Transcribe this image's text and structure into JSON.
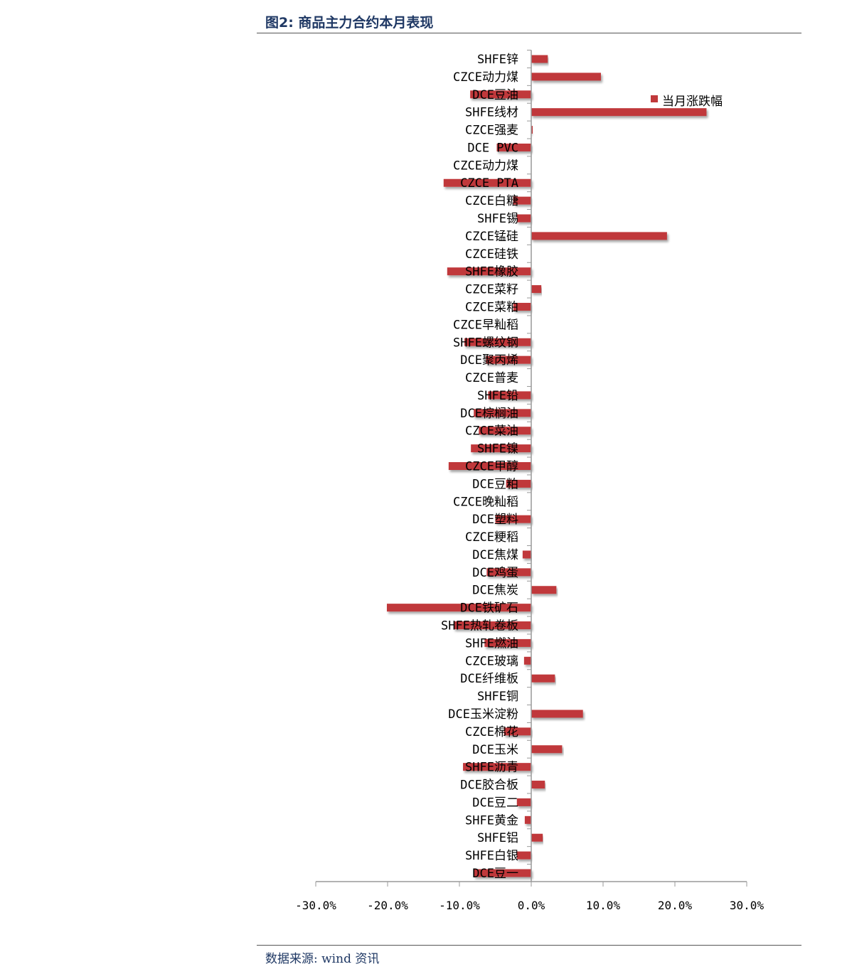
{
  "title": "图2:  商品主力合约本月表现",
  "source": "数据来源:  wind 资讯",
  "chart_data": {
    "type": "bar",
    "orientation": "horizontal",
    "title": "",
    "xlabel": "",
    "ylabel": "",
    "xlim": [
      -30,
      30
    ],
    "x_ticks": [
      -30,
      -20,
      -10,
      0,
      10,
      20,
      30
    ],
    "x_tick_labels": [
      "-30.0%",
      "-20.0%",
      "-10.0%",
      "0.0%",
      "10.0%",
      "20.0%",
      "30.0%"
    ],
    "legend": {
      "labels": [
        "当月涨跌幅"
      ],
      "placement": "top-right"
    },
    "bar_color": "#c0393b",
    "categories": [
      "SHFE锌",
      "CZCE动力煤",
      "DCE豆油",
      "SHFE线材",
      "CZCE强麦",
      "DCE  PVC",
      "CZCE动力煤",
      "CZCE  PTA",
      "CZCE白糖",
      "SHFE锡",
      "CZCE锰硅",
      "CZCE硅铁",
      "SHFE橡胶",
      "CZCE菜籽",
      "CZCE菜粕",
      "CZCE早籼稻",
      "SHFE螺纹钢",
      "DCE聚丙烯",
      "CZCE普麦",
      "SHFE铅",
      "DCE棕榈油",
      "CZCE菜油",
      "SHFE镍",
      "CZCE甲醇",
      "DCE豆粕",
      "CZCE晚籼稻",
      "DCE塑料",
      "CZCE粳稻",
      "DCE焦煤",
      "DCE鸡蛋",
      "DCE焦炭",
      "DCE铁矿石",
      "SHFE热轧卷板",
      "SHFE燃油",
      "CZCE玻璃",
      "DCE纤维板",
      "SHFE铜",
      "DCE玉米淀粉",
      "CZCE棉花",
      "DCE玉米",
      "SHFE沥青",
      "DCE胶合板",
      "DCE豆二",
      "SHFE黄金",
      "SHFE铝",
      "SHFE白银",
      "DCE豆一"
    ],
    "series": [
      {
        "name": "当月涨跌幅",
        "values": [
          2.3,
          9.7,
          -8.5,
          24.4,
          0.2,
          -4.8,
          0,
          -12.2,
          -2.5,
          -2.0,
          18.9,
          0,
          -11.7,
          1.4,
          -2.5,
          0,
          -9.3,
          -6.3,
          0,
          -6.0,
          -8.0,
          -7.3,
          -8.4,
          -11.5,
          -3.5,
          0,
          -5.0,
          0,
          -1.2,
          -6.2,
          3.5,
          -20.1,
          -10.8,
          -6.5,
          -1.0,
          3.3,
          0,
          7.2,
          -3.8,
          4.3,
          -9.5,
          1.9,
          -2.0,
          -0.9,
          1.6,
          -2.0,
          -8.0
        ]
      }
    ]
  }
}
